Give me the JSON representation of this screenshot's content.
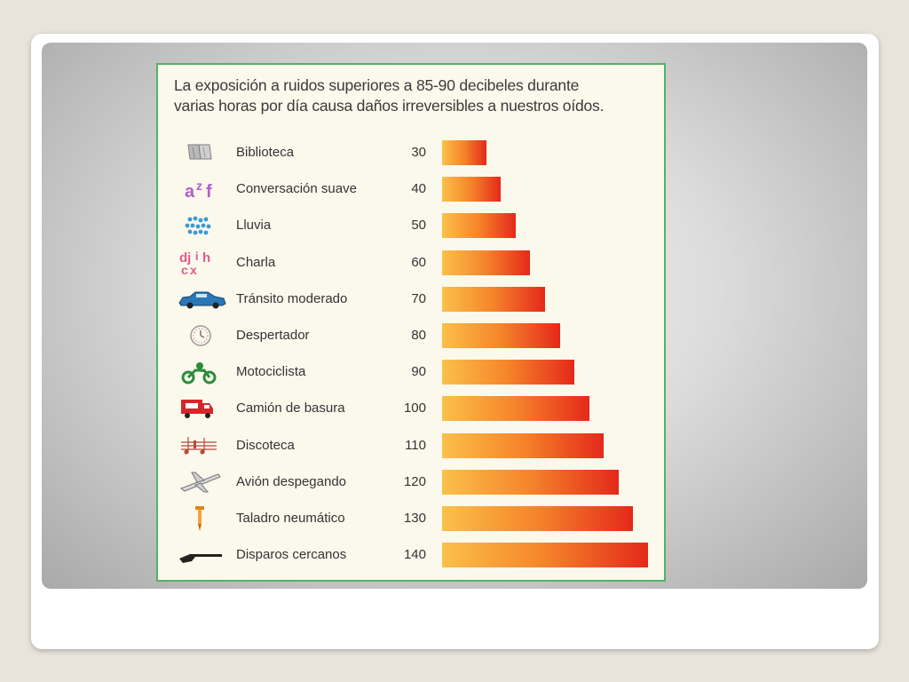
{
  "chart_data": {
    "type": "bar",
    "orientation": "horizontal",
    "title_lines": [
      "La exposición a ruidos superiores a 85-90 decibeles durante",
      "varias horas por día causa daños irreversibles a nuestros oídos."
    ],
    "categories": [
      "Biblioteca",
      "Conversación suave",
      "Lluvia",
      "Charla",
      "Tránsito moderado",
      "Despertador",
      "Motociclista",
      "Camión de basura",
      "Discoteca",
      "Avión despegando",
      "Taladro neumático",
      "Disparos cercanos"
    ],
    "values": [
      30,
      40,
      50,
      60,
      70,
      80,
      90,
      100,
      110,
      120,
      130,
      140
    ],
    "icons": [
      "book-icon",
      "letters-azf-icon",
      "rain-drops-icon",
      "chat-letters-icon",
      "car-icon",
      "alarm-clock-icon",
      "motorcycle-icon",
      "garbage-truck-icon",
      "music-notes-icon",
      "airplane-icon",
      "pneumatic-drill-icon",
      "shotgun-icon"
    ],
    "bar_gradient": [
      "#fbc04a",
      "#f5842a",
      "#e4291a"
    ],
    "border_color": "#52b464",
    "grid": false,
    "legend": false
  }
}
